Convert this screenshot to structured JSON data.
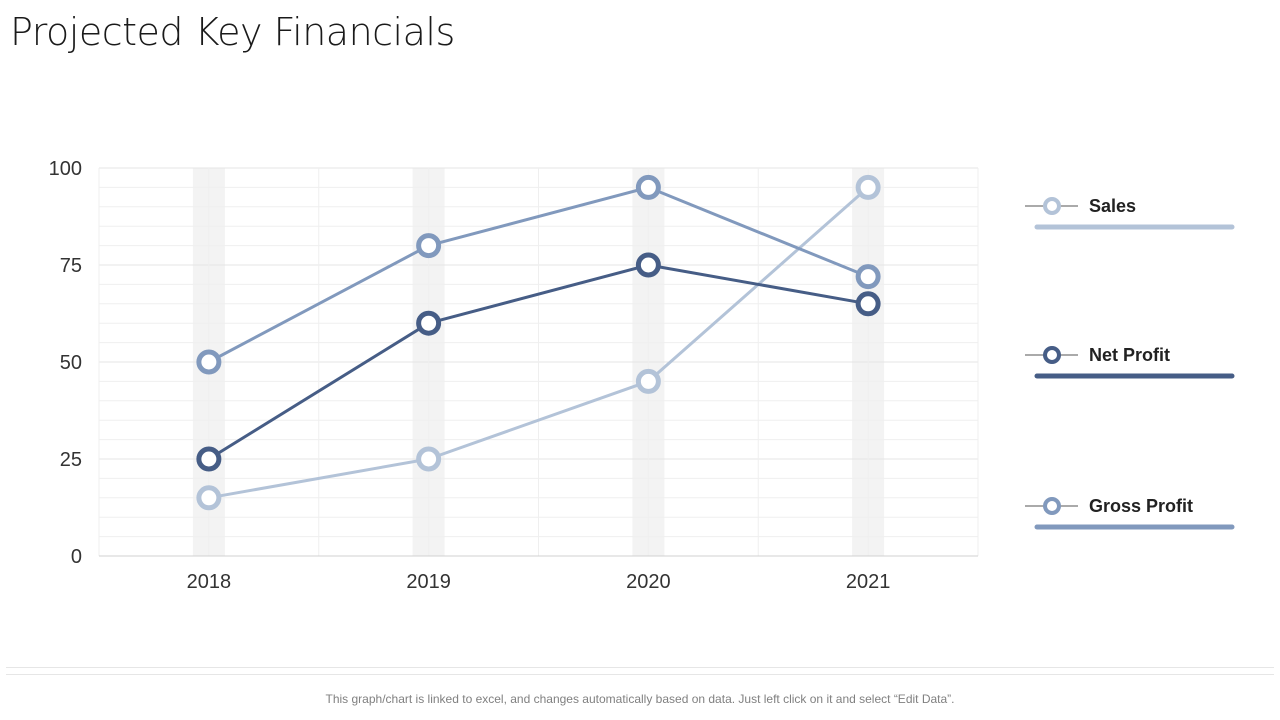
{
  "title": "Projected Key Financials",
  "footer": "This graph/chart is linked to excel, and changes automatically based on data. Just left click on it and select “Edit Data”.",
  "chart_data": {
    "type": "line",
    "title": "",
    "xlabel": "",
    "ylabel": "",
    "categories": [
      "2018",
      "2019",
      "2020",
      "2021"
    ],
    "ylim": [
      0,
      100
    ],
    "yticks": [
      0,
      25,
      50,
      75,
      100
    ],
    "grid": true,
    "legend_position": "right",
    "series": [
      {
        "name": "Sales",
        "values": [
          15,
          25,
          45,
          95
        ],
        "color": "#b3c3d8"
      },
      {
        "name": "Net Profit",
        "values": [
          25,
          60,
          75,
          65
        ],
        "color": "#465d86"
      },
      {
        "name": "Gross Profit",
        "values": [
          50,
          80,
          95,
          72
        ],
        "color": "#8199bd"
      }
    ]
  }
}
